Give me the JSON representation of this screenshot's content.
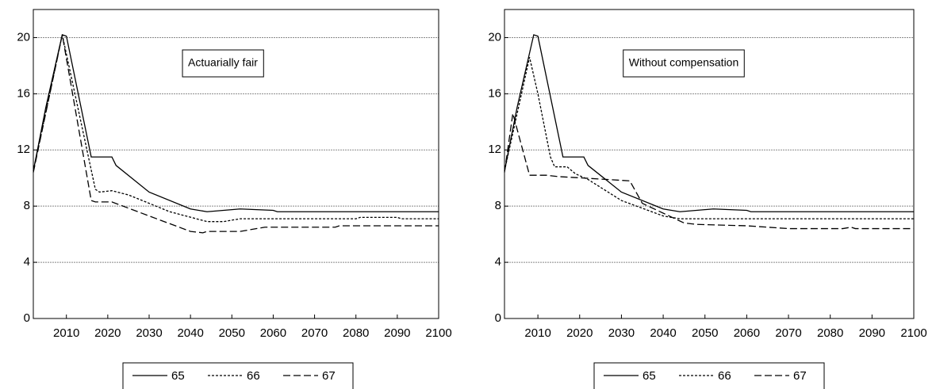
{
  "chart_data": [
    {
      "type": "line",
      "annotation": "Actuarially fair",
      "xlim": [
        2002,
        2100
      ],
      "xticks": [
        2010,
        2020,
        2030,
        2040,
        2050,
        2060,
        2070,
        2080,
        2090,
        2100
      ],
      "ylim": [
        0,
        22
      ],
      "yticks": [
        0,
        4,
        8,
        12,
        16,
        20
      ],
      "grid": true,
      "series": [
        {
          "name": "65",
          "color": "#000000",
          "style": "solid",
          "x": [
            2002,
            2005,
            2009,
            2010,
            2016,
            2021,
            2022,
            2030,
            2040,
            2044,
            2052,
            2060,
            2061,
            2100
          ],
          "values": [
            10.5,
            15,
            20.2,
            20.1,
            11.5,
            11.5,
            10.9,
            9,
            7.8,
            7.6,
            7.8,
            7.7,
            7.6,
            7.6
          ]
        },
        {
          "name": "66",
          "color": "#000000",
          "style": "dotted",
          "x": [
            2002,
            2009,
            2017,
            2018,
            2021,
            2025,
            2035,
            2044,
            2048,
            2050,
            2052,
            2080,
            2081,
            2090,
            2091,
            2100
          ],
          "values": [
            10.5,
            20.2,
            9.2,
            9,
            9.1,
            8.8,
            7.6,
            6.9,
            6.9,
            7,
            7.1,
            7.1,
            7.2,
            7.2,
            7.1,
            7.1
          ]
        },
        {
          "name": "67",
          "color": "#000000",
          "style": "dashed",
          "x": [
            2002,
            2009,
            2016,
            2017,
            2021,
            2030,
            2040,
            2043,
            2044,
            2052,
            2056,
            2058,
            2075,
            2076,
            2100
          ],
          "values": [
            10.4,
            20.2,
            8.4,
            8.3,
            8.3,
            7.3,
            6.2,
            6.1,
            6.2,
            6.2,
            6.4,
            6.5,
            6.5,
            6.6,
            6.6
          ]
        }
      ]
    },
    {
      "type": "line",
      "annotation": "Without compensation",
      "xlim": [
        2002,
        2100
      ],
      "xticks": [
        2010,
        2020,
        2030,
        2040,
        2050,
        2060,
        2070,
        2080,
        2090,
        2100
      ],
      "ylim": [
        0,
        22
      ],
      "yticks": [
        0,
        4,
        8,
        12,
        16,
        20
      ],
      "grid": true,
      "series": [
        {
          "name": "65",
          "color": "#000000",
          "style": "solid",
          "x": [
            2002,
            2005,
            2009,
            2010,
            2016,
            2021,
            2022,
            2030,
            2040,
            2044,
            2052,
            2060,
            2061,
            2100
          ],
          "values": [
            10.5,
            15,
            20.2,
            20.1,
            11.5,
            11.5,
            10.9,
            9,
            7.8,
            7.6,
            7.8,
            7.7,
            7.6,
            7.6
          ]
        },
        {
          "name": "66",
          "color": "#000000",
          "style": "dotted",
          "x": [
            2002,
            2008,
            2010,
            2013,
            2014,
            2017,
            2019,
            2022,
            2030,
            2040,
            2044,
            2100
          ],
          "values": [
            10.5,
            18.6,
            16,
            11.5,
            10.8,
            10.8,
            10.3,
            9.9,
            8.4,
            7.3,
            7.1,
            7.1
          ]
        },
        {
          "name": "67",
          "color": "#000000",
          "style": "dashed",
          "x": [
            2002,
            2004,
            2008,
            2012,
            2015,
            2021,
            2032,
            2035,
            2045,
            2048,
            2060,
            2070,
            2083,
            2085,
            2086,
            2100
          ],
          "values": [
            10.4,
            14.6,
            10.2,
            10.2,
            10.1,
            10,
            9.8,
            8.2,
            6.8,
            6.7,
            6.6,
            6.4,
            6.4,
            6.5,
            6.4,
            6.4
          ]
        }
      ]
    }
  ]
}
